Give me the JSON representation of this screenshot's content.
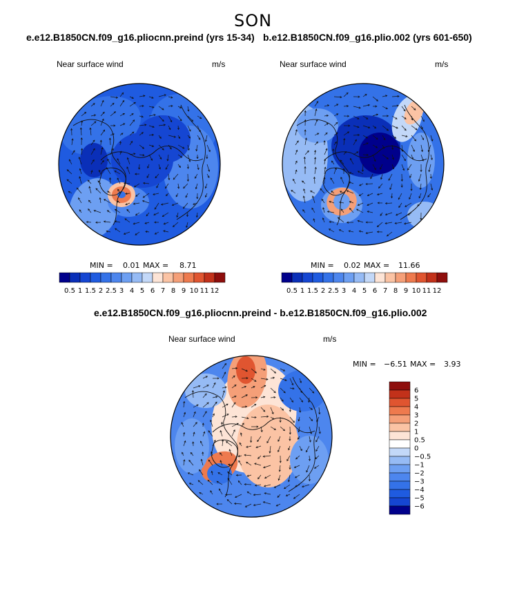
{
  "page": {
    "title": "SON"
  },
  "panels": [
    {
      "title": "e.e12.B1850CN.f09_g16.pliocnn.preind (yrs 15-34)",
      "variable": "Near surface wind",
      "units": "m/s",
      "min_label": "MIN =",
      "min_value": "0.01",
      "max_label": "MAX =",
      "max_value": "8.71",
      "colorbar_labels": [
        "0.5",
        "1",
        "1.5",
        "2",
        "2.5",
        "3",
        "4",
        "5",
        "6",
        "7",
        "8",
        "9",
        "10",
        "11",
        "12"
      ]
    },
    {
      "title": "b.e12.B1850CN.f09_g16.plio.002 (yrs 601-650)",
      "variable": "Near surface wind",
      "units": "m/s",
      "min_label": "MIN =",
      "min_value": "0.02",
      "max_label": "MAX =",
      "max_value": "11.66",
      "colorbar_labels": [
        "0.5",
        "1",
        "1.5",
        "2",
        "2.5",
        "3",
        "4",
        "5",
        "6",
        "7",
        "8",
        "9",
        "10",
        "11",
        "12"
      ]
    },
    {
      "title": "e.e12.B1850CN.f09_g16.pliocnn.preind - b.e12.B1850CN.f09_g16.plio.002",
      "variable": "Near surface wind",
      "units": "m/s",
      "min_label": "MIN =",
      "min_value": "−6.51",
      "max_label": "MAX =",
      "max_value": "3.93",
      "colorbar_labels": [
        "6",
        "5",
        "4",
        "3",
        "2",
        "1",
        "0.5",
        "0",
        "−0.5",
        "−1",
        "−2",
        "−3",
        "−4",
        "−5",
        "−6"
      ]
    }
  ],
  "colors": {
    "seq": [
      "#00008b",
      "#0a2fb8",
      "#1546d2",
      "#1f5be0",
      "#3472e8",
      "#4d86ee",
      "#6d9ff2",
      "#96bbf5",
      "#c3d8f8",
      "#fde4d6",
      "#fbc3a4",
      "#f59f78",
      "#ee7a4e",
      "#e05530",
      "#c2311a",
      "#8e0e0c"
    ],
    "div": [
      "#8e0e0c",
      "#c2311a",
      "#e05530",
      "#ee7a4e",
      "#f59f78",
      "#fbc3a4",
      "#fde4d6",
      "#ffffff",
      "#c3d8f8",
      "#96bbf5",
      "#6d9ff2",
      "#4d86ee",
      "#3472e8",
      "#1f5be0",
      "#1546d2",
      "#00008b"
    ],
    "coast": "#111111",
    "arrow": "#111111"
  }
}
